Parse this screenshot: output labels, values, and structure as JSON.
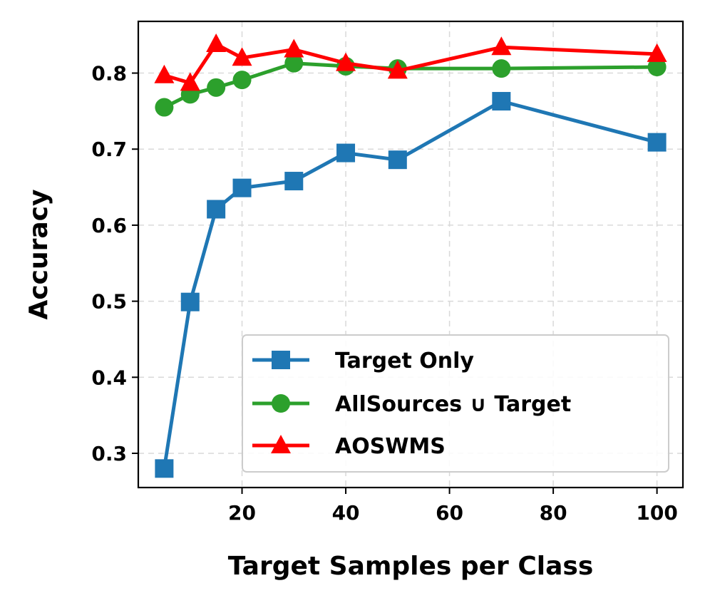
{
  "chart_data": {
    "type": "line",
    "xlabel": "Target Samples per Class",
    "ylabel": "Accuracy",
    "xlim": [
      0,
      105
    ],
    "ylim": [
      0.255,
      0.868
    ],
    "xticks": [
      20,
      40,
      60,
      80,
      100
    ],
    "yticks": [
      0.3,
      0.4,
      0.5,
      0.6,
      0.7,
      0.8
    ],
    "xtick_labels": [
      "20",
      "40",
      "60",
      "80",
      "100"
    ],
    "ytick_labels": [
      "0.3",
      "0.4",
      "0.5",
      "0.6",
      "0.7",
      "0.8"
    ],
    "grid": true,
    "legend_position": "lower-right",
    "x": [
      5,
      10,
      15,
      20,
      30,
      40,
      50,
      70,
      100
    ],
    "series": [
      {
        "name": "Target Only",
        "color": "#1f77b4",
        "marker": "square",
        "values": [
          0.28,
          0.499,
          0.621,
          0.649,
          0.658,
          0.695,
          0.686,
          0.763,
          0.709
        ]
      },
      {
        "name": "AllSources ∪ Target",
        "color": "#2ca02c",
        "marker": "circle",
        "values": [
          0.755,
          0.772,
          0.781,
          0.791,
          0.813,
          0.809,
          0.806,
          0.806,
          0.808
        ]
      },
      {
        "name": "AOSWMS",
        "color": "#ff0000",
        "marker": "triangle",
        "values": [
          0.797,
          0.787,
          0.838,
          0.82,
          0.831,
          0.813,
          0.803,
          0.834,
          0.825
        ]
      }
    ]
  }
}
